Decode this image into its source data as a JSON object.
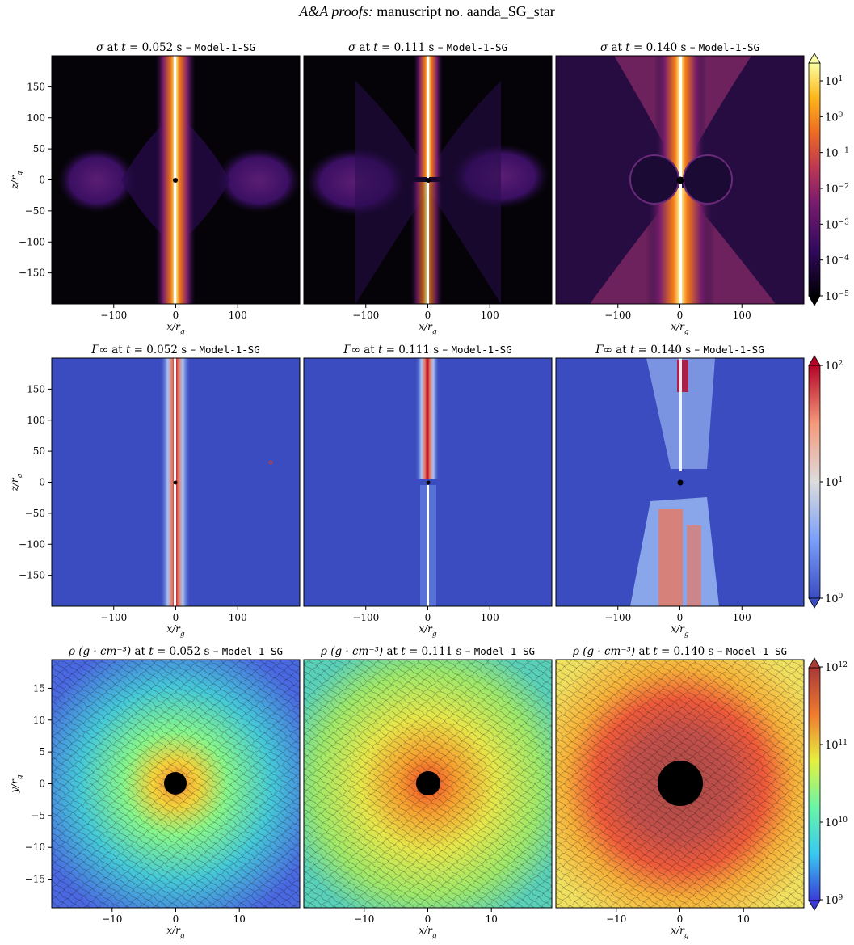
{
  "header": {
    "journal": "A&A proofs:",
    "manuscript": "manuscript no. aanda_SG_star"
  },
  "model": "Model-1-SG",
  "times": [
    "0.052",
    "0.111",
    "0.140"
  ],
  "rows": [
    {
      "id": "sigma",
      "quantity": "σ",
      "units": "",
      "xlabel": "x/r_g",
      "ylabel": "z/r_g",
      "xticks": [
        "−100",
        "0",
        "100"
      ],
      "yticks": [
        "150",
        "100",
        "50",
        "0",
        "−50",
        "−100",
        "−150"
      ],
      "colorbar": {
        "scale": "log",
        "range": [
          "1e-5",
          "5e1"
        ],
        "labels": [
          "10^1",
          "10^0",
          "10^−1",
          "10^−2",
          "10^−3",
          "10^−4",
          "10^−5"
        ],
        "colormap": "inferno"
      }
    },
    {
      "id": "gamma",
      "quantity": "Γ∞",
      "units": "",
      "xlabel": "x/r_g",
      "ylabel": "z/r_g",
      "xticks": [
        "−100",
        "0",
        "100"
      ],
      "yticks": [
        "150",
        "100",
        "50",
        "0",
        "−50",
        "−100",
        "−150"
      ],
      "colorbar": {
        "scale": "log",
        "range": [
          "1e0",
          "1e2"
        ],
        "labels": [
          "10^2",
          "10^1",
          "10^0"
        ],
        "colormap": "coolwarm"
      }
    },
    {
      "id": "rho",
      "quantity": "ρ",
      "units": "(g · cm⁻³)",
      "xlabel": "x/r_g",
      "ylabel": "y/r_g",
      "xticks": [
        "−10",
        "0",
        "10"
      ],
      "yticks": [
        "15",
        "10",
        "5",
        "0",
        "−5",
        "−10",
        "−15"
      ],
      "colorbar": {
        "scale": "log",
        "range": [
          "1e9",
          "1e12"
        ],
        "labels": [
          "10^12",
          "10^11",
          "10^10",
          "10^9"
        ],
        "colormap": "turbo"
      }
    }
  ],
  "colors": {
    "inferno_dark": "#050308",
    "coolwarm_blue": "#3b4cc0",
    "jet_red": "#d73027"
  }
}
